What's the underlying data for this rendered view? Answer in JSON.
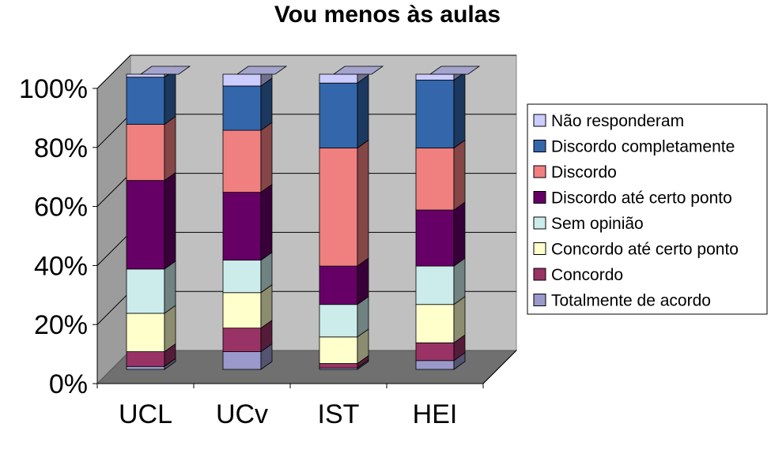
{
  "chart_data": {
    "type": "bar",
    "stacked": true,
    "three_d": true,
    "title": "Vou menos às aulas",
    "categories": [
      "UCL",
      "UCv",
      "IST",
      "HEI"
    ],
    "ylim": [
      0,
      100
    ],
    "yticks": [
      "0%",
      "20%",
      "40%",
      "60%",
      "80%",
      "100%"
    ],
    "grid": true,
    "legend_position": "right",
    "series": [
      {
        "name": "Totalmente de acordo",
        "color": "#9999CC",
        "values": [
          1,
          6,
          0.5,
          3
        ]
      },
      {
        "name": "Concordo",
        "color": "#993366",
        "values": [
          5,
          8,
          1.5,
          6
        ]
      },
      {
        "name": "Concordo até certo ponto",
        "color": "#FFFFCC",
        "values": [
          13,
          12,
          9,
          13
        ]
      },
      {
        "name": "Sem opinião",
        "color": "#CCECEC",
        "values": [
          15,
          11,
          11,
          13
        ]
      },
      {
        "name": "Discordo até certo ponto",
        "color": "#660066",
        "values": [
          30,
          23,
          13,
          19
        ]
      },
      {
        "name": "Discordo",
        "color": "#F08080",
        "values": [
          19,
          21,
          40,
          21
        ]
      },
      {
        "name": "Discordo completamente",
        "color": "#3366AA",
        "values": [
          16,
          15,
          22,
          23
        ]
      },
      {
        "name": "Não responderam",
        "color": "#CCCCFF",
        "values": [
          1,
          4,
          3,
          2
        ]
      }
    ]
  }
}
